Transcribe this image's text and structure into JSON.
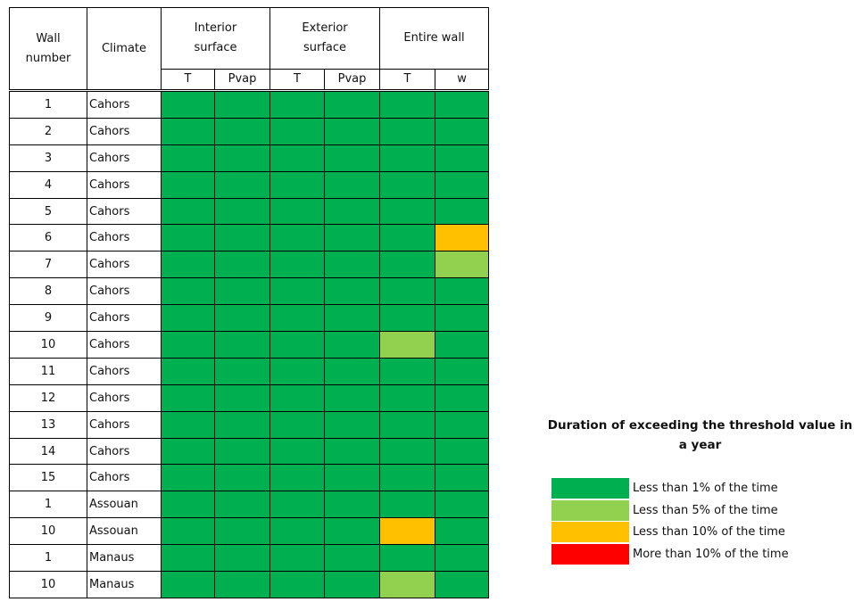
{
  "table": {
    "headers": {
      "wall_number": "Wall number",
      "climate": "Climate",
      "groups": [
        "Interior surface",
        "Exterior surface",
        "Entire wall"
      ],
      "sub": [
        "T",
        "Pvap",
        "T",
        "Pvap",
        "T",
        "w"
      ]
    },
    "rows": [
      {
        "wall": "1",
        "climate": "Cahors",
        "cells": [
          0,
          0,
          0,
          0,
          0,
          0
        ]
      },
      {
        "wall": "2",
        "climate": "Cahors",
        "cells": [
          0,
          0,
          0,
          0,
          0,
          0
        ]
      },
      {
        "wall": "3",
        "climate": "Cahors",
        "cells": [
          0,
          0,
          0,
          0,
          0,
          0
        ]
      },
      {
        "wall": "4",
        "climate": "Cahors",
        "cells": [
          0,
          0,
          0,
          0,
          0,
          0
        ]
      },
      {
        "wall": "5",
        "climate": "Cahors",
        "cells": [
          0,
          0,
          0,
          0,
          0,
          0
        ]
      },
      {
        "wall": "6",
        "climate": "Cahors",
        "cells": [
          0,
          0,
          0,
          0,
          0,
          2
        ]
      },
      {
        "wall": "7",
        "climate": "Cahors",
        "cells": [
          0,
          0,
          0,
          0,
          0,
          1
        ]
      },
      {
        "wall": "8",
        "climate": "Cahors",
        "cells": [
          0,
          0,
          0,
          0,
          0,
          0
        ]
      },
      {
        "wall": "9",
        "climate": "Cahors",
        "cells": [
          0,
          0,
          0,
          0,
          0,
          0
        ]
      },
      {
        "wall": "10",
        "climate": "Cahors",
        "cells": [
          0,
          0,
          0,
          0,
          1,
          0
        ]
      },
      {
        "wall": "11",
        "climate": "Cahors",
        "cells": [
          0,
          0,
          0,
          0,
          0,
          0
        ]
      },
      {
        "wall": "12",
        "climate": "Cahors",
        "cells": [
          0,
          0,
          0,
          0,
          0,
          0
        ]
      },
      {
        "wall": "13",
        "climate": "Cahors",
        "cells": [
          0,
          0,
          0,
          0,
          0,
          0
        ]
      },
      {
        "wall": "14",
        "climate": "Cahors",
        "cells": [
          0,
          0,
          0,
          0,
          0,
          0
        ]
      },
      {
        "wall": "15",
        "climate": "Cahors",
        "cells": [
          0,
          0,
          0,
          0,
          0,
          0
        ]
      },
      {
        "wall": "1",
        "climate": "Assouan",
        "cells": [
          0,
          0,
          0,
          0,
          0,
          0
        ]
      },
      {
        "wall": "10",
        "climate": "Assouan",
        "cells": [
          0,
          0,
          0,
          0,
          2,
          0
        ]
      },
      {
        "wall": "1",
        "climate": "Manaus",
        "cells": [
          0,
          0,
          0,
          0,
          0,
          0
        ]
      },
      {
        "wall": "10",
        "climate": "Manaus",
        "cells": [
          0,
          0,
          0,
          0,
          1,
          0
        ]
      }
    ]
  },
  "legend": {
    "title": "Duration of exceeding the threshold value in a year",
    "items": [
      {
        "label": "Less than 1% of the time",
        "color": "#00b050"
      },
      {
        "label": "Less than 5% of the time",
        "color": "#92d050"
      },
      {
        "label": "Less than 10% of the time",
        "color": "#ffc000"
      },
      {
        "label": "More than 10% of the time",
        "color": "#ff0000"
      }
    ]
  }
}
